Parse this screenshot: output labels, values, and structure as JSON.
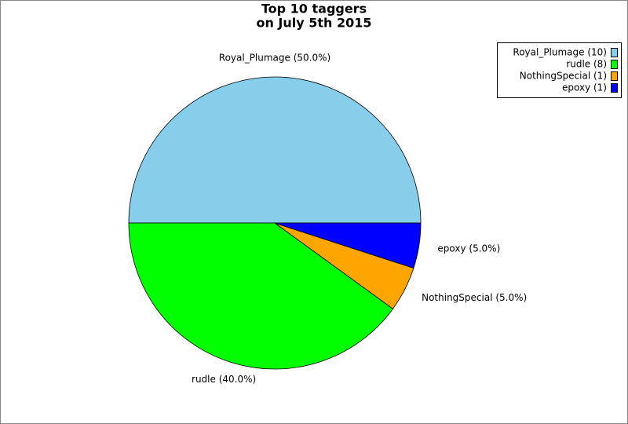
{
  "chart_data": {
    "type": "pie",
    "title": "Top 10 taggers",
    "subtitle": "on July 5th 2015",
    "values": [
      50,
      40,
      5,
      5
    ],
    "value_labels": [
      "Royal_Plumage (50.0%)",
      "rudle (40.0%)",
      "NothingSpecial (5.0%)",
      "epoxy (5.0%)"
    ],
    "legend": [
      "Royal_Plumage (10)",
      "rudle (8)",
      "NothingSpecial (1)",
      "epoxy (1)"
    ],
    "colors": [
      "#87ceeb",
      "#00ff00",
      "#ffa500",
      "#0000ff"
    ],
    "legend_position": "top-right"
  }
}
